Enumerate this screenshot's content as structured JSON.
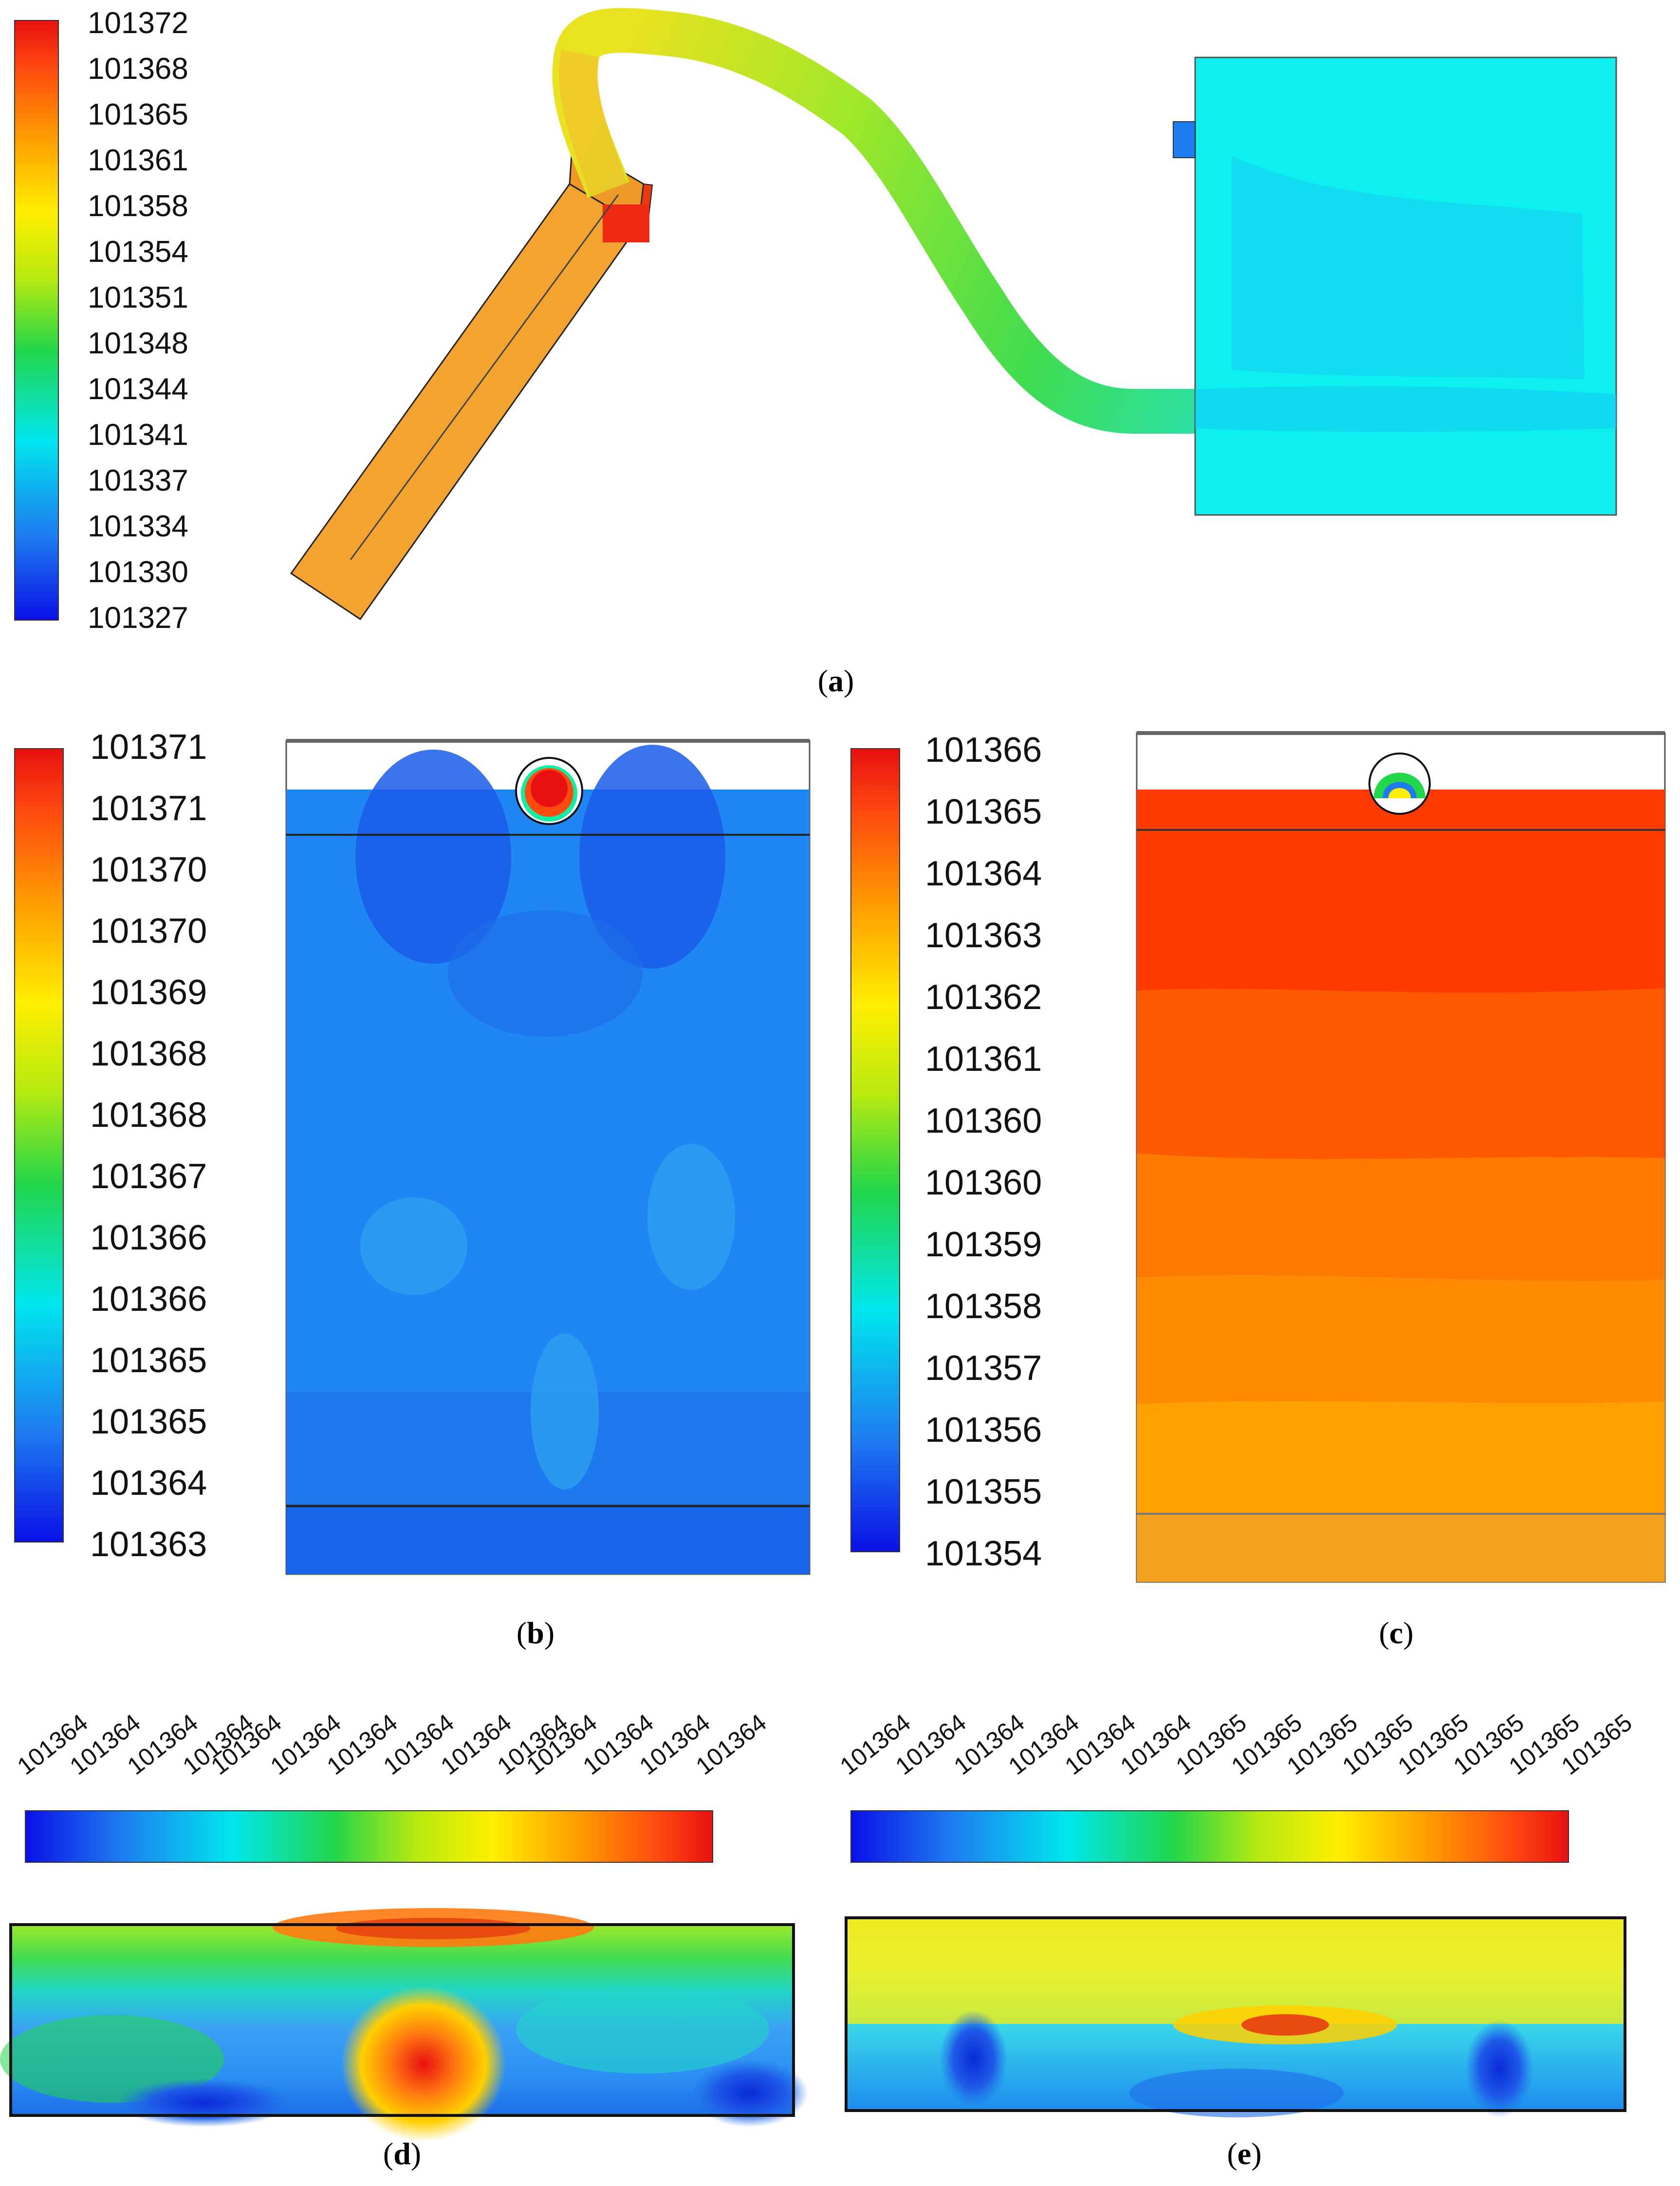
{
  "panels": {
    "a": {
      "caption": "a",
      "colorbar_ticks": [
        "101372",
        "101368",
        "101365",
        "101361",
        "101358",
        "101354",
        "101351",
        "101348",
        "101344",
        "101341",
        "101337",
        "101334",
        "101330",
        "101327"
      ]
    },
    "b": {
      "caption": "b",
      "colorbar_ticks": [
        "101371",
        "101371",
        "101370",
        "101370",
        "101369",
        "101368",
        "101368",
        "101367",
        "101366",
        "101366",
        "101365",
        "101365",
        "101364",
        "101363"
      ]
    },
    "c": {
      "caption": "c",
      "colorbar_ticks": [
        "101366",
        "101365",
        "101364",
        "101363",
        "101362",
        "101361",
        "101360",
        "101360",
        "101359",
        "101358",
        "101357",
        "101356",
        "101355",
        "101354"
      ]
    },
    "d": {
      "caption": "d",
      "colorbar_ticks": [
        "101364",
        "101364",
        "101364",
        "101364",
        "101364",
        "101364",
        "101364",
        "101364",
        "101364",
        "101364",
        "101364",
        "101364",
        "101364",
        "101364"
      ]
    },
    "e": {
      "caption": "e",
      "colorbar_ticks": [
        "101364",
        "101364",
        "101364",
        "101364",
        "101364",
        "101364",
        "101365",
        "101365",
        "101365",
        "101365",
        "101365",
        "101365",
        "101365",
        "101365"
      ]
    }
  },
  "colors": {
    "jet_stops": [
      "#0a10e6",
      "#1e7cf0",
      "#00e6ee",
      "#22d64a",
      "#b8ea10",
      "#ffef00",
      "#ffa000",
      "#ff4a10",
      "#e81010"
    ],
    "panel_a_bar": "#f3a430",
    "panel_a_tank": "#0ef0f0",
    "panel_b_field": "#1f86f4",
    "panel_c_field": "#ff3a00"
  }
}
